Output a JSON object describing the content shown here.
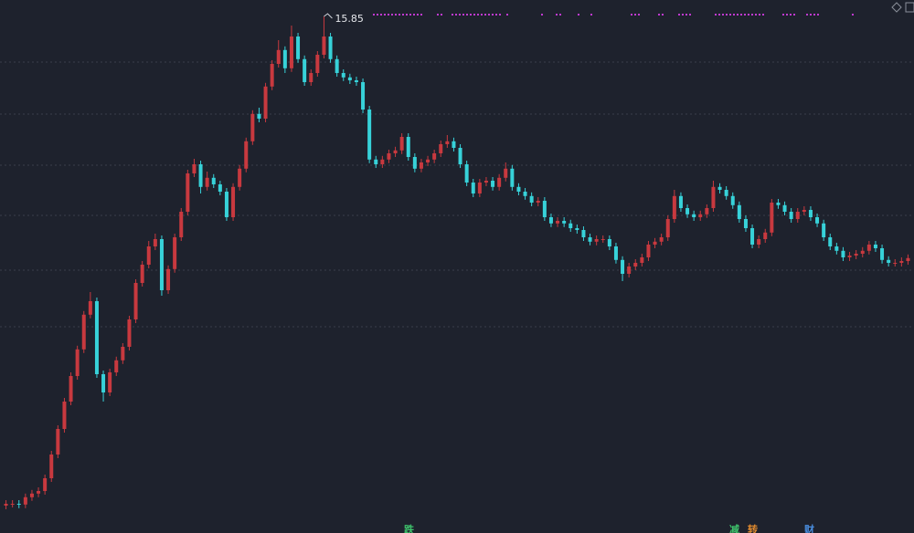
{
  "chart_data": {
    "type": "candlestick",
    "ylim": [
      1.7,
      16.3
    ],
    "up_color": "#c8393f",
    "down_color": "#37d2d9",
    "open": [
      2.45,
      2.5,
      2.5,
      2.48,
      2.68,
      2.78,
      2.85,
      3.2,
      3.85,
      4.55,
      5.3,
      6.0,
      6.73,
      7.68,
      8.05,
      6.05,
      5.55,
      6.1,
      6.43,
      6.8,
      7.55,
      8.55,
      9.05,
      9.55,
      9.75,
      8.35,
      8.93,
      9.8,
      10.5,
      11.55,
      11.8,
      11.18,
      11.43,
      11.25,
      11.05,
      10.35,
      11.18,
      11.68,
      12.43,
      13.18,
      13.05,
      13.93,
      14.55,
      14.93,
      14.43,
      15.3,
      14.68,
      14.05,
      14.3,
      14.8,
      15.3,
      14.68,
      14.3,
      14.18,
      14.1,
      14.05,
      13.3,
      11.93,
      11.8,
      11.93,
      12.1,
      12.18,
      12.55,
      12.0,
      11.68,
      11.85,
      11.93,
      12.1,
      12.35,
      12.43,
      12.25,
      11.8,
      11.3,
      11.0,
      11.3,
      11.35,
      11.18,
      11.43,
      11.68,
      11.18,
      11.05,
      10.93,
      10.75,
      10.8,
      10.35,
      10.18,
      10.25,
      10.18,
      10.05,
      10.0,
      9.8,
      9.68,
      9.75,
      9.75,
      9.55,
      9.18,
      8.8,
      9.0,
      9.1,
      9.25,
      9.6,
      9.68,
      9.8,
      10.3,
      10.93,
      10.6,
      10.43,
      10.35,
      10.43,
      10.6,
      11.18,
      11.1,
      10.93,
      10.68,
      10.3,
      10.05,
      9.6,
      9.75,
      9.93,
      10.75,
      10.68,
      10.5,
      10.3,
      10.5,
      10.55,
      10.35,
      10.18,
      9.8,
      9.55,
      9.43,
      9.25,
      9.3,
      9.35,
      9.43,
      9.6,
      9.5,
      9.18,
      9.1,
      9.1,
      9.15
    ],
    "close": [
      2.5,
      2.5,
      2.48,
      2.68,
      2.78,
      2.85,
      3.2,
      3.85,
      4.55,
      5.3,
      6.0,
      6.73,
      7.68,
      8.05,
      6.05,
      5.55,
      6.1,
      6.43,
      6.8,
      7.55,
      8.55,
      9.05,
      9.55,
      9.75,
      8.35,
      8.93,
      9.8,
      10.5,
      11.55,
      11.8,
      11.18,
      11.43,
      11.25,
      11.05,
      10.35,
      11.18,
      11.68,
      12.43,
      13.18,
      13.05,
      13.93,
      14.55,
      14.93,
      14.43,
      15.3,
      14.68,
      14.05,
      14.3,
      14.8,
      15.3,
      14.68,
      14.3,
      14.18,
      14.1,
      14.05,
      13.3,
      11.93,
      11.8,
      11.93,
      12.1,
      12.18,
      12.55,
      12.0,
      11.68,
      11.85,
      11.93,
      12.1,
      12.35,
      12.43,
      12.25,
      11.8,
      11.3,
      11.0,
      11.3,
      11.35,
      11.18,
      11.43,
      11.68,
      11.18,
      11.05,
      10.93,
      10.75,
      10.8,
      10.35,
      10.18,
      10.25,
      10.18,
      10.05,
      10.0,
      9.8,
      9.68,
      9.75,
      9.75,
      9.55,
      9.18,
      8.8,
      9.0,
      9.1,
      9.25,
      9.6,
      9.68,
      9.8,
      10.3,
      10.93,
      10.6,
      10.43,
      10.35,
      10.43,
      10.6,
      11.18,
      11.1,
      10.93,
      10.68,
      10.3,
      10.05,
      9.6,
      9.75,
      9.93,
      10.75,
      10.68,
      10.5,
      10.3,
      10.5,
      10.55,
      10.35,
      10.18,
      9.8,
      9.55,
      9.43,
      9.25,
      9.3,
      9.35,
      9.43,
      9.6,
      9.5,
      9.18,
      9.1,
      9.1,
      9.15,
      9.23
    ],
    "high": [
      2.6,
      2.6,
      2.6,
      2.78,
      2.88,
      2.95,
      3.3,
      3.95,
      4.65,
      5.4,
      6.1,
      6.83,
      7.78,
      8.3,
      8.15,
      6.15,
      6.2,
      6.53,
      6.9,
      7.65,
      8.65,
      9.15,
      9.7,
      9.9,
      9.85,
      9.03,
      9.9,
      10.6,
      11.65,
      11.95,
      11.9,
      11.6,
      11.53,
      11.35,
      11.15,
      11.28,
      11.78,
      12.53,
      13.28,
      13.35,
      14.03,
      14.65,
      15.2,
      15.03,
      15.6,
      15.4,
      14.78,
      14.4,
      14.9,
      15.85,
      15.4,
      14.78,
      14.4,
      14.28,
      14.2,
      14.15,
      13.4,
      12.03,
      12.03,
      12.2,
      12.28,
      12.65,
      12.65,
      12.1,
      11.95,
      12.03,
      12.2,
      12.45,
      12.6,
      12.53,
      12.35,
      11.9,
      11.4,
      11.4,
      11.45,
      11.45,
      11.53,
      11.85,
      11.78,
      11.28,
      11.15,
      11.03,
      10.9,
      10.9,
      10.45,
      10.35,
      10.35,
      10.28,
      10.15,
      10.1,
      9.9,
      9.85,
      9.85,
      9.85,
      9.65,
      9.28,
      9.1,
      9.2,
      9.35,
      9.7,
      9.78,
      9.9,
      10.4,
      11.1,
      11.03,
      10.7,
      10.53,
      10.53,
      10.7,
      11.35,
      11.28,
      11.2,
      11.03,
      10.78,
      10.4,
      10.15,
      9.85,
      10.03,
      10.85,
      10.85,
      10.78,
      10.6,
      10.6,
      10.65,
      10.65,
      10.45,
      10.28,
      9.9,
      9.65,
      9.53,
      9.4,
      9.45,
      9.53,
      9.7,
      9.7,
      9.6,
      9.28,
      9.2,
      9.25,
      9.33
    ],
    "low": [
      2.35,
      2.4,
      2.38,
      2.38,
      2.58,
      2.68,
      2.75,
      3.1,
      3.75,
      4.45,
      5.2,
      5.9,
      6.63,
      7.58,
      5.95,
      5.3,
      5.45,
      6.0,
      6.33,
      6.7,
      7.45,
      8.45,
      8.95,
      9.45,
      8.2,
      8.25,
      8.83,
      9.7,
      10.4,
      11.45,
      11.0,
      11.08,
      11.15,
      10.95,
      10.25,
      10.25,
      11.08,
      11.58,
      12.33,
      12.95,
      12.95,
      13.83,
      14.45,
      14.3,
      14.33,
      14.58,
      13.95,
      13.95,
      14.2,
      14.7,
      14.58,
      14.2,
      14.08,
      14.0,
      13.95,
      13.2,
      11.83,
      11.7,
      11.7,
      11.83,
      12.0,
      12.08,
      11.9,
      11.58,
      11.58,
      11.75,
      11.83,
      12.0,
      12.25,
      12.15,
      11.7,
      11.2,
      10.9,
      10.9,
      11.2,
      11.08,
      11.08,
      11.33,
      11.08,
      10.95,
      10.83,
      10.65,
      10.65,
      10.25,
      10.08,
      10.08,
      10.08,
      9.95,
      9.9,
      9.7,
      9.58,
      9.58,
      9.65,
      9.45,
      9.08,
      8.6,
      8.7,
      8.9,
      9.0,
      9.15,
      9.5,
      9.58,
      9.7,
      10.2,
      10.5,
      10.33,
      10.25,
      10.25,
      10.33,
      10.5,
      11.0,
      10.83,
      10.58,
      10.2,
      9.95,
      9.5,
      9.5,
      9.65,
      9.83,
      10.58,
      10.4,
      10.2,
      10.2,
      10.4,
      10.25,
      10.08,
      9.7,
      9.45,
      9.33,
      9.15,
      9.15,
      9.2,
      9.25,
      9.33,
      9.4,
      9.08,
      9.0,
      9.0,
      9.0,
      9.05
    ],
    "event_labels": [
      "跌",
      "减",
      "转",
      "财"
    ]
  }
}
